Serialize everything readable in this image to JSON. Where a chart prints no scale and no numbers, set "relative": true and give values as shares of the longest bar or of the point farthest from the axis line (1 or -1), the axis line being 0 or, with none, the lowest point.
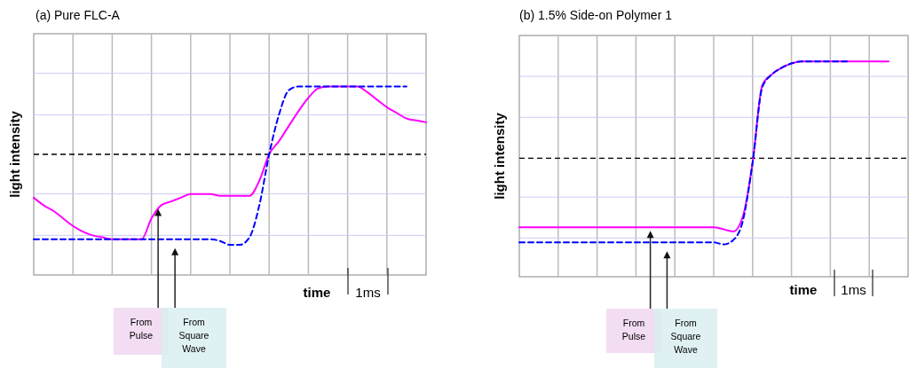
{
  "chart_data": [
    {
      "type": "line",
      "title": "(a) Pure FLC-A",
      "xlabel": "time",
      "ylabel": "light intensity",
      "relative": true,
      "grid": "x",
      "categories": [
        null,
        null,
        null,
        null,
        null,
        null,
        null,
        null,
        null,
        null,
        null,
        null,
        null,
        null,
        null,
        null,
        null,
        null,
        null,
        null,
        null,
        null,
        null,
        null,
        null,
        null,
        null,
        null,
        null,
        null,
        null,
        null,
        null,
        null,
        null,
        null,
        null,
        null,
        null,
        null,
        null
      ],
      "series": [
        {
          "color": "#ff00ff",
          "line_style": "solid",
          "values": [
            0.41,
            0.37,
            0.34,
            0.3,
            0.26,
            0.23,
            0.21,
            0.2,
            0.19,
            0.19,
            0.19,
            0.19,
            0.3,
            0.37,
            0.39,
            0.41,
            0.43,
            0.43,
            0.43,
            0.42,
            0.42,
            0.42,
            0.42,
            0.5,
            0.64,
            0.71,
            0.79,
            0.87,
            0.94,
            0.99,
            1.0,
            1.0,
            1.0,
            1.0,
            0.97,
            0.93,
            0.89,
            0.86,
            0.83,
            0.82,
            0.81
          ]
        },
        {
          "color": "#0000ff",
          "line_style": "dashed",
          "values": [
            0.19,
            0.19,
            0.19,
            0.19,
            0.19,
            0.19,
            0.19,
            0.19,
            0.19,
            0.19,
            0.19,
            0.19,
            0.19,
            0.19,
            0.19,
            0.19,
            0.19,
            0.19,
            0.19,
            0.18,
            0.16,
            0.16,
            0.2,
            0.37,
            0.64,
            0.85,
            0.98,
            1.0,
            1.0,
            1.0,
            1.0,
            1.0,
            1.0,
            1.0,
            1.0,
            1.0,
            1.0,
            1.0,
            1.0,
            null,
            null
          ]
        }
      ],
      "ref_lines": [
        {
          "axis": "y",
          "value": 0.64,
          "color": "#000000",
          "line_style": "dashed"
        },
        {
          "axis": "y",
          "value": 1.07,
          "color": "#ccccf5",
          "line_style": "solid"
        },
        {
          "axis": "y",
          "value": 0.85,
          "color": "#ccccf5",
          "line_style": "solid"
        },
        {
          "axis": "y",
          "value": 0.43,
          "color": "#ccccf5",
          "line_style": "solid"
        },
        {
          "axis": "y",
          "value": 0.21,
          "color": "#ccccf5",
          "line_style": "solid"
        }
      ],
      "annotations": [
        "1ms",
        "From Pulse",
        "From Square Wave"
      ]
    },
    {
      "type": "line",
      "title": "(b) 1.5% Side-on Polymer 1",
      "xlabel": "time",
      "ylabel": "light intensity",
      "relative": true,
      "grid": "x",
      "categories": [
        null,
        null,
        null,
        null,
        null,
        null,
        null,
        null,
        null,
        null,
        null,
        null,
        null,
        null,
        null,
        null,
        null,
        null,
        null,
        null,
        null,
        null,
        null,
        null,
        null,
        null,
        null,
        null,
        null,
        null,
        null,
        null,
        null,
        null,
        null,
        null,
        null,
        null,
        null,
        null,
        null
      ],
      "series": [
        {
          "color": "#ff00ff",
          "line_style": "solid",
          "values": [
            0.23,
            0.23,
            0.23,
            0.23,
            0.23,
            0.23,
            0.23,
            0.23,
            0.23,
            0.23,
            0.23,
            0.23,
            0.23,
            0.23,
            0.23,
            0.23,
            0.23,
            0.23,
            0.23,
            0.23,
            0.23,
            0.22,
            0.21,
            0.28,
            0.53,
            0.89,
            0.94,
            0.97,
            0.99,
            1.0,
            1.0,
            1.0,
            1.0,
            1.0,
            1.0,
            1.0,
            1.0,
            1.0,
            1.0,
            null,
            null
          ]
        },
        {
          "color": "#0000ff",
          "line_style": "dashed",
          "values": [
            0.16,
            0.16,
            0.16,
            0.16,
            0.16,
            0.16,
            0.16,
            0.16,
            0.16,
            0.16,
            0.16,
            0.16,
            0.16,
            0.16,
            0.16,
            0.16,
            0.16,
            0.16,
            0.16,
            0.16,
            0.16,
            0.15,
            0.17,
            0.26,
            0.53,
            0.88,
            0.94,
            0.97,
            0.99,
            1.0,
            1.0,
            1.0,
            1.0,
            1.0,
            1.0,
            null,
            null,
            null,
            null,
            null,
            null
          ]
        }
      ],
      "ref_lines": [
        {
          "axis": "y",
          "value": 0.55,
          "color": "#000000",
          "line_style": "dashed"
        },
        {
          "axis": "y",
          "value": 0.93,
          "color": "#ccccf5",
          "line_style": "solid"
        },
        {
          "axis": "y",
          "value": 0.74,
          "color": "#ccccf5",
          "line_style": "solid"
        },
        {
          "axis": "y",
          "value": 0.37,
          "color": "#ccccf5",
          "line_style": "solid"
        },
        {
          "axis": "y",
          "value": 0.18,
          "color": "#ccccf5",
          "line_style": "solid"
        }
      ],
      "annotations": [
        "1ms",
        "From Pulse",
        "From Square Wave"
      ]
    }
  ]
}
